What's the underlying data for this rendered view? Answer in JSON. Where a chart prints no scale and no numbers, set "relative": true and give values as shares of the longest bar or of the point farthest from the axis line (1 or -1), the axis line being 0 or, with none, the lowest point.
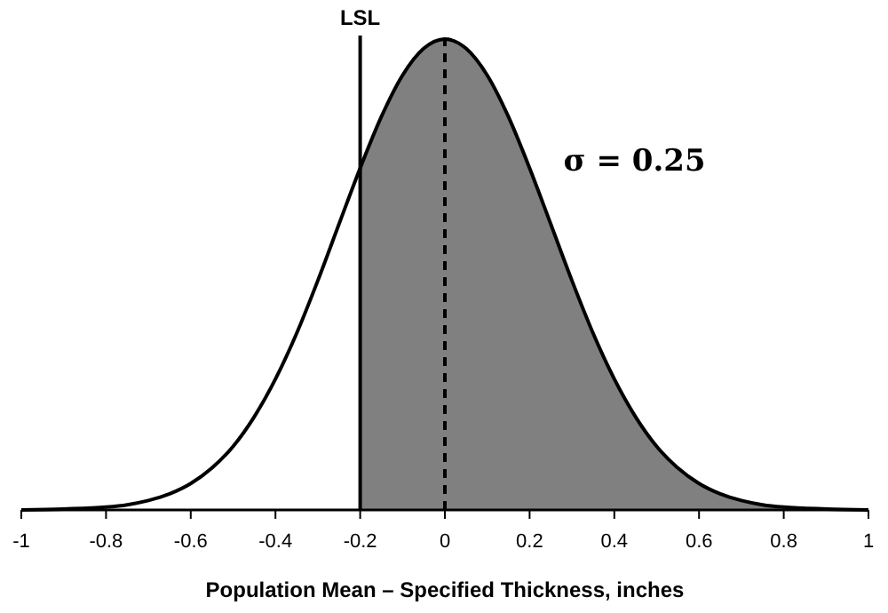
{
  "chart_data": {
    "type": "line",
    "relative": true,
    "xlabel": "Population Mean – Specified Thickness, inches",
    "xlim": [
      -1,
      1
    ],
    "xticks": [
      -1,
      -0.8,
      -0.6,
      -0.4,
      -0.2,
      0,
      0.2,
      0.4,
      0.6,
      0.8,
      1
    ],
    "grid": false,
    "series": [
      {
        "type": "area",
        "color": "#808080",
        "x": [
          -0.2,
          -0.15,
          -0.1,
          -0.05,
          0,
          0.05,
          0.1,
          0.15,
          0.2,
          0.25,
          0.3,
          0.35,
          0.4,
          0.45,
          0.5,
          0.55,
          0.6,
          0.65,
          0.7,
          0.75,
          0.8,
          0.9,
          1
        ],
        "values": [
          0.726,
          0.835,
          0.923,
          0.98,
          1,
          0.98,
          0.923,
          0.835,
          0.726,
          0.607,
          0.487,
          0.375,
          0.278,
          0.198,
          0.135,
          0.089,
          0.056,
          0.034,
          0.02,
          0.011,
          0.006,
          0.002,
          0
        ]
      },
      {
        "color": "#000000",
        "x": [
          -1,
          -0.9,
          -0.8,
          -0.75,
          -0.7,
          -0.65,
          -0.6,
          -0.55,
          -0.5,
          -0.45,
          -0.4,
          -0.35,
          -0.3,
          -0.25,
          -0.2,
          -0.15,
          -0.1,
          -0.05,
          0,
          0.05,
          0.1,
          0.15,
          0.2,
          0.25,
          0.3,
          0.35,
          0.4,
          0.45,
          0.5,
          0.55,
          0.6,
          0.65,
          0.7,
          0.75,
          0.8,
          0.9,
          1
        ],
        "values": [
          0,
          0.002,
          0.006,
          0.011,
          0.02,
          0.034,
          0.056,
          0.089,
          0.135,
          0.198,
          0.278,
          0.375,
          0.487,
          0.607,
          0.726,
          0.835,
          0.923,
          0.98,
          1,
          0.98,
          0.923,
          0.835,
          0.726,
          0.607,
          0.487,
          0.375,
          0.278,
          0.198,
          0.135,
          0.089,
          0.056,
          0.034,
          0.02,
          0.011,
          0.006,
          0.002,
          0
        ]
      }
    ],
    "ref_lines": [
      {
        "axis": "x",
        "value": -0.2,
        "label": "LSL",
        "line_style": "solid"
      },
      {
        "axis": "x",
        "value": 0,
        "line_style": "dashed"
      }
    ],
    "annotations": [
      "σ = 0.25"
    ]
  }
}
